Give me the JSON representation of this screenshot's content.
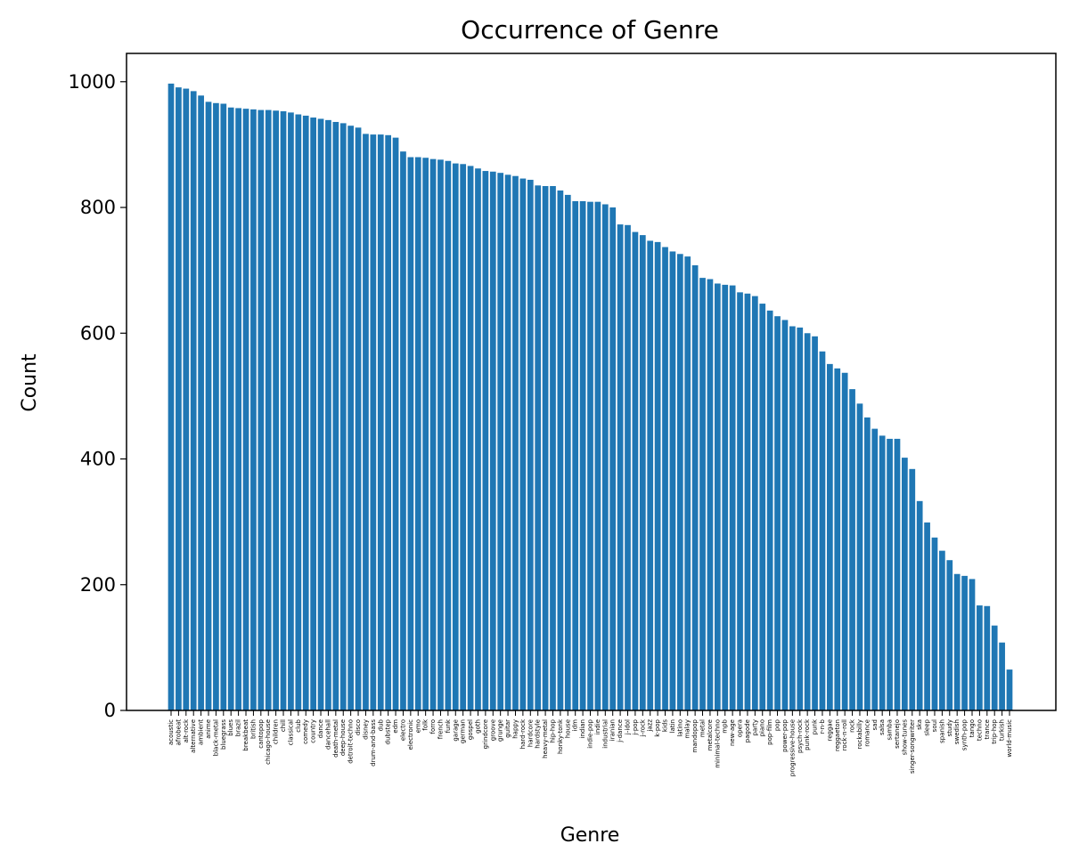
{
  "chart_data": {
    "type": "bar",
    "title": "Occurrence of Genre",
    "xlabel": "Genre",
    "ylabel": "Count",
    "ylim": [
      0,
      1045
    ],
    "yticks": [
      0,
      200,
      400,
      600,
      800,
      1000
    ],
    "grid": false,
    "bar_color": "#1f77b4",
    "categories": [
      "acoustic",
      "afrobeat",
      "alt-rock",
      "alternative",
      "ambient",
      "anime",
      "black-metal",
      "bluegrass",
      "blues",
      "brazil",
      "breakbeat",
      "british",
      "cantopop",
      "chicago-house",
      "children",
      "chill",
      "classical",
      "club",
      "comedy",
      "country",
      "dance",
      "dancehall",
      "death-metal",
      "deep-house",
      "detroit-techno",
      "disco",
      "disney",
      "drum-and-bass",
      "dub",
      "dubstep",
      "edm",
      "electro",
      "electronic",
      "emo",
      "folk",
      "forro",
      "french",
      "funk",
      "garage",
      "german",
      "gospel",
      "goth",
      "grindcore",
      "groove",
      "grunge",
      "guitar",
      "happy",
      "hard-rock",
      "hardcore",
      "hardstyle",
      "heavy-metal",
      "hip-hop",
      "honky-tonk",
      "house",
      "idm",
      "indian",
      "indie-pop",
      "indie",
      "industrial",
      "iranian",
      "j-dance",
      "j-idol",
      "j-pop",
      "j-rock",
      "jazz",
      "k-pop",
      "kids",
      "latin",
      "latino",
      "malay",
      "mandopop",
      "metal",
      "metalcore",
      "minimal-techno",
      "mpb",
      "new-age",
      "opera",
      "pagode",
      "party",
      "piano",
      "pop-film",
      "pop",
      "power-pop",
      "progressive-house",
      "psych-rock",
      "punk-rock",
      "punk",
      "r-n-b",
      "reggae",
      "reggaeton",
      "rock-n-roll",
      "rock",
      "rockabilly",
      "romance",
      "sad",
      "salsa",
      "samba",
      "sertanejo",
      "show-tunes",
      "singer-songwriter",
      "ska",
      "sleep",
      "soul",
      "spanish",
      "study",
      "swedish",
      "synth-pop",
      "tango",
      "techno",
      "trance",
      "trip-hop",
      "turkish",
      "world-music"
    ],
    "values": [
      997,
      991,
      989,
      985,
      978,
      968,
      966,
      965,
      959,
      958,
      957,
      956,
      955,
      955,
      954,
      953,
      951,
      948,
      946,
      943,
      941,
      939,
      936,
      934,
      930,
      927,
      917,
      916,
      916,
      915,
      911,
      889,
      880,
      880,
      879,
      877,
      876,
      874,
      870,
      869,
      866,
      862,
      858,
      857,
      855,
      852,
      850,
      846,
      844,
      835,
      834,
      834,
      827,
      820,
      810,
      810,
      809,
      809,
      805,
      800,
      773,
      772,
      761,
      756,
      747,
      745,
      737,
      730,
      726,
      722,
      708,
      688,
      686,
      679,
      677,
      676,
      665,
      663,
      659,
      647,
      636,
      627,
      621,
      611,
      609,
      600,
      595,
      571,
      551,
      544,
      537,
      511,
      488,
      466,
      448,
      437,
      432,
      432,
      402,
      384,
      333,
      299,
      275,
      254,
      239,
      217,
      214,
      209,
      167,
      166,
      135,
      108,
      65
    ]
  }
}
